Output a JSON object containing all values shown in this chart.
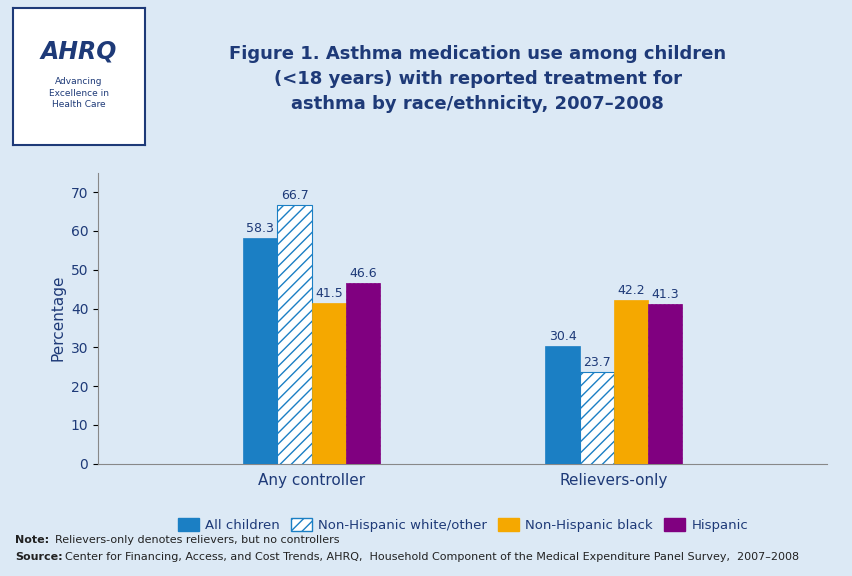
{
  "title": "Figure 1. Asthma medication use among children\n(<18 years) with reported treatment for\nasthma by race/ethnicity, 2007–2008",
  "title_color": "#1e3a78",
  "ylabel": "Percentage",
  "groups": [
    "Any controller",
    "Relievers-only"
  ],
  "series": [
    {
      "label": "All children",
      "values": [
        58.3,
        30.4
      ],
      "color": "#1b7fc4",
      "hatch": null,
      "edgecolor": "#1b7fc4"
    },
    {
      "label": "Non-Hispanic white/other",
      "values": [
        66.7,
        23.7
      ],
      "color": "#ffffff",
      "hatch": "///",
      "edgecolor": "#1b7fc4"
    },
    {
      "label": "Non-Hispanic black",
      "values": [
        41.5,
        42.2
      ],
      "color": "#f5a800",
      "hatch": null,
      "edgecolor": "#f5a800"
    },
    {
      "label": "Hispanic",
      "values": [
        46.6,
        41.3
      ],
      "color": "#800080",
      "hatch": "...",
      "edgecolor": "#800080"
    }
  ],
  "ylim": [
    0,
    75
  ],
  "yticks": [
    0,
    10,
    20,
    30,
    40,
    50,
    60,
    70
  ],
  "bar_width": 0.17,
  "note_bold": "Note:",
  "note_rest": "  Relievers-only denotes relievers, but no controllers",
  "source_bold": "Source:",
  "source_rest": "  Center for Financing, Access, and Cost Trends, AHRQ,  Household Component of the Medical Expenditure Panel Survey,  2007–2008",
  "background_color": "#dce9f5",
  "header_bg": "#ffffff",
  "separator_color": "#1e3a78",
  "title_fontsize": 13,
  "value_fontsize": 9,
  "axis_label_fontsize": 11,
  "tick_fontsize": 10,
  "legend_fontsize": 9.5
}
